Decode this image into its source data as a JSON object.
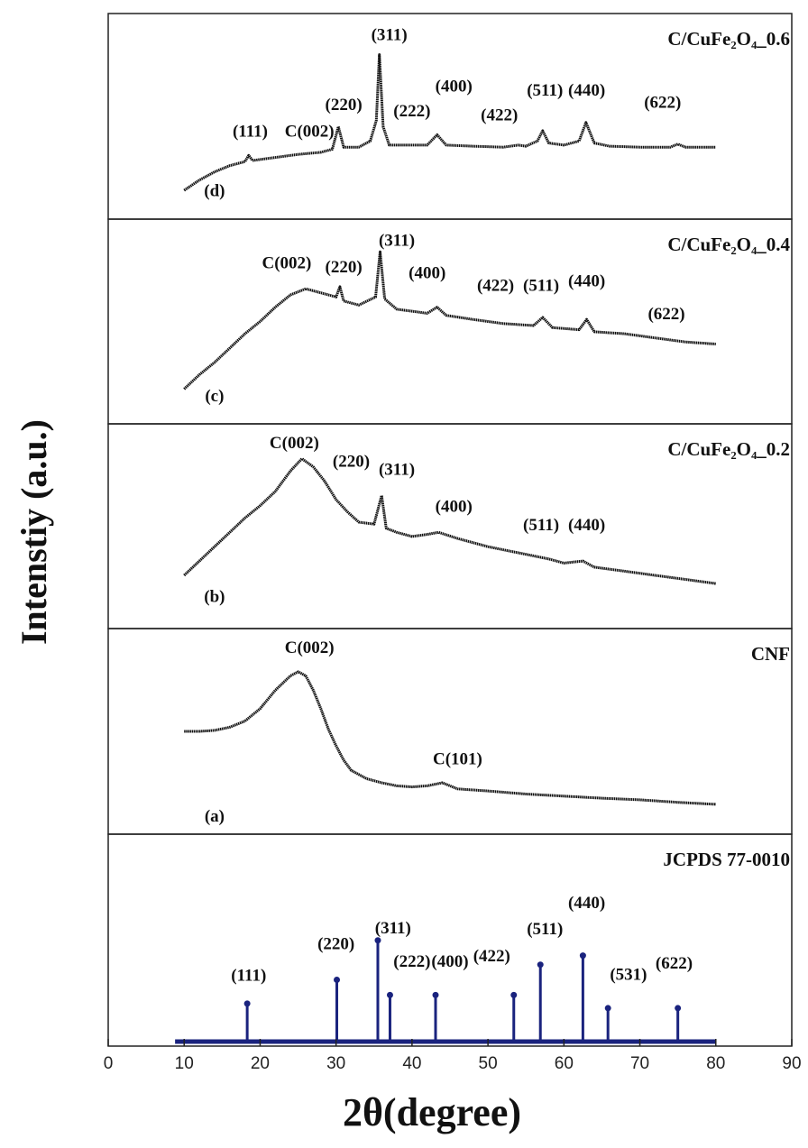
{
  "chart_data": [
    {
      "type": "line",
      "title": "C/CuFe₂O₄_0.6",
      "color": "#111111",
      "ylim": [
        0,
        100
      ],
      "x": [
        10,
        12,
        14,
        16,
        18,
        18.5,
        19,
        22,
        25,
        28,
        29.5,
        30.3,
        31,
        33,
        34.5,
        35.3,
        35.7,
        36.2,
        37,
        39,
        42,
        43.3,
        44.5,
        48,
        52,
        54,
        55,
        56.5,
        57.2,
        58,
        60,
        62,
        62.9,
        64,
        66,
        70,
        74,
        75,
        76,
        80
      ],
      "values": [
        14,
        19,
        23,
        26,
        28,
        31,
        28.5,
        30,
        31.5,
        32.5,
        34,
        45,
        35,
        35,
        38,
        48,
        80,
        45,
        36,
        36,
        36,
        41,
        36,
        35.5,
        35,
        36,
        35.5,
        38,
        43,
        37,
        36,
        38,
        47,
        37,
        35.5,
        35,
        35,
        36.5,
        35,
        35
      ],
      "annotations": [
        {
          "text": "(311)",
          "x": 37,
          "y": 89
        },
        {
          "text": "(111)",
          "x": 18.7,
          "y": 42
        },
        {
          "text": "C(002)",
          "x": 26.5,
          "y": 42
        },
        {
          "text": "(220)",
          "x": 31,
          "y": 55
        },
        {
          "text": "(222)",
          "x": 40,
          "y": 52
        },
        {
          "text": "(400)",
          "x": 45.5,
          "y": 64
        },
        {
          "text": "(422)",
          "x": 51.5,
          "y": 50
        },
        {
          "text": "(511)",
          "x": 57.5,
          "y": 62
        },
        {
          "text": "(440)",
          "x": 63,
          "y": 62
        },
        {
          "text": "(622)",
          "x": 73,
          "y": 56
        },
        {
          "text": "(d)",
          "x": 14,
          "y": 13
        }
      ]
    },
    {
      "type": "line",
      "title": "C/CuFe₂O₄_0.4",
      "color": "#111111",
      "ylim": [
        0,
        100
      ],
      "x": [
        10,
        12,
        14,
        16,
        18,
        20,
        22,
        24,
        26,
        28,
        30,
        30.5,
        31,
        33,
        35.2,
        35.8,
        36.4,
        38,
        40,
        42,
        43.3,
        44.5,
        48,
        52,
        56,
        57.2,
        58.5,
        62,
        63,
        64,
        68,
        72,
        76,
        80
      ],
      "values": [
        17,
        24,
        30,
        37,
        44,
        50,
        57,
        63,
        66,
        64,
        62,
        67,
        60,
        58,
        62,
        84,
        61,
        56,
        55,
        54,
        57,
        53,
        51,
        49,
        48,
        52,
        47,
        46,
        51,
        45,
        44,
        42,
        40,
        39
      ],
      "annotations": [
        {
          "text": "C(002)",
          "x": 23.5,
          "y": 78
        },
        {
          "text": "(220)",
          "x": 31,
          "y": 76
        },
        {
          "text": "(311)",
          "x": 38,
          "y": 89
        },
        {
          "text": "(400)",
          "x": 42,
          "y": 73
        },
        {
          "text": "(422)",
          "x": 51,
          "y": 67
        },
        {
          "text": "(511)",
          "x": 57,
          "y": 67
        },
        {
          "text": "(440)",
          "x": 63,
          "y": 69
        },
        {
          "text": "(622)",
          "x": 73.5,
          "y": 53
        },
        {
          "text": "(c)",
          "x": 14,
          "y": 13
        }
      ]
    },
    {
      "type": "line",
      "title": "C/CuFe₂O₄_0.2",
      "color": "#111111",
      "ylim": [
        0,
        100
      ],
      "x": [
        10,
        12,
        14,
        16,
        18,
        20,
        22,
        24,
        25.5,
        27,
        28.5,
        30,
        31.5,
        33,
        35,
        36,
        36.6,
        38,
        40,
        42,
        43.5,
        46,
        50,
        54,
        58,
        60,
        62.5,
        64,
        68,
        72,
        76,
        80
      ],
      "values": [
        26,
        33,
        40,
        47,
        54,
        60,
        67,
        77,
        83,
        79,
        72,
        63,
        57,
        52,
        51,
        65,
        49,
        47,
        45,
        46,
        47,
        44,
        40,
        37,
        34,
        32,
        33,
        30,
        28,
        26,
        24,
        22
      ],
      "annotations": [
        {
          "text": "C(002)",
          "x": 24.5,
          "y": 90
        },
        {
          "text": "(220)",
          "x": 32,
          "y": 81
        },
        {
          "text": "(311)",
          "x": 38,
          "y": 77
        },
        {
          "text": "(400)",
          "x": 45.5,
          "y": 59
        },
        {
          "text": "(511)",
          "x": 57,
          "y": 50
        },
        {
          "text": "(440)",
          "x": 63,
          "y": 50
        },
        {
          "text": "(b)",
          "x": 14,
          "y": 15
        }
      ]
    },
    {
      "type": "line",
      "title": "CNF",
      "color": "#111111",
      "ylim": [
        0,
        100
      ],
      "x": [
        10,
        12,
        14,
        16,
        18,
        20,
        22,
        24,
        25,
        26,
        27,
        28,
        29,
        30,
        31,
        32,
        34,
        36,
        38,
        40,
        42,
        44,
        46,
        50,
        55,
        60,
        65,
        70,
        75,
        80
      ],
      "values": [
        50,
        50,
        50.5,
        52,
        55,
        61,
        70,
        77,
        79,
        77,
        70,
        61,
        51,
        43,
        36,
        31,
        27,
        25,
        23.5,
        23,
        23.5,
        25,
        22,
        21,
        19.5,
        18.5,
        17.5,
        16.7,
        15.5,
        14.5
      ],
      "annotations": [
        {
          "text": "C(002)",
          "x": 26.5,
          "y": 90
        },
        {
          "text": "C(101)",
          "x": 46,
          "y": 36
        },
        {
          "text": "(a)",
          "x": 14,
          "y": 8
        }
      ]
    },
    {
      "type": "stem",
      "title": "JCPDS 77-0010",
      "color": "#1a237e",
      "ylim": [
        -4.5,
        205
      ],
      "x": [
        18.3,
        30.1,
        35.5,
        37.1,
        43.1,
        53.4,
        56.9,
        62.5,
        65.8,
        75
      ],
      "values": [
        37.5,
        61,
        100,
        46,
        46,
        46,
        76,
        85,
        33,
        33
      ],
      "annotations": [
        {
          "text": "(111)",
          "x": 18.5,
          "y": 64
        },
        {
          "text": "(220)",
          "x": 30,
          "y": 95
        },
        {
          "text": "(311)",
          "x": 37.5,
          "y": 111
        },
        {
          "text": "(222)",
          "x": 40,
          "y": 78
        },
        {
          "text": "(400)",
          "x": 45,
          "y": 78
        },
        {
          "text": "(422)",
          "x": 50.5,
          "y": 83
        },
        {
          "text": "(511)",
          "x": 57.5,
          "y": 110
        },
        {
          "text": "(440)",
          "x": 63,
          "y": 136
        },
        {
          "text": "(531)",
          "x": 68.5,
          "y": 65
        },
        {
          "text": "(622)",
          "x": 74.5,
          "y": 76
        }
      ],
      "xlabel": "2θ(degree)",
      "xlim": [
        0,
        90
      ],
      "xticks": [
        0,
        10,
        20,
        30,
        40,
        50,
        60,
        70,
        80,
        90
      ]
    }
  ],
  "ylabel": "Intenstiy (a.u.)"
}
